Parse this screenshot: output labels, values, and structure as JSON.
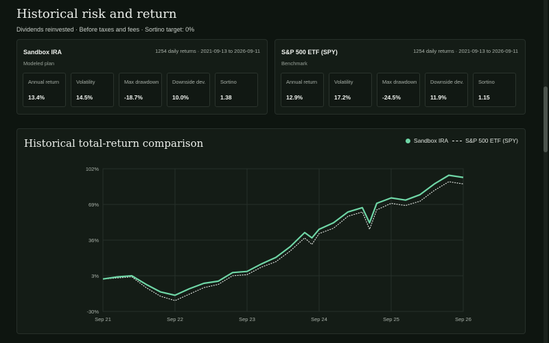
{
  "page": {
    "title": "Historical risk and return",
    "subtitle": "Dividends reinvested · Before taxes and fees · Sortino target: 0%"
  },
  "cards": [
    {
      "name": "Sandbox IRA",
      "role": "Modeled plan",
      "period": "1254 daily returns · 2021-09-13 to 2026-09-11",
      "metrics": [
        {
          "label": "Annual return",
          "value": "13.4%"
        },
        {
          "label": "Volatility",
          "value": "14.5%"
        },
        {
          "label": "Max drawdown",
          "value": "-18.7%"
        },
        {
          "label": "Downside dev.",
          "value": "10.0%"
        },
        {
          "label": "Sortino",
          "value": "1.38"
        }
      ]
    },
    {
      "name": "S&P 500 ETF (SPY)",
      "role": "Benchmark",
      "period": "1254 daily returns · 2021-09-13 to 2026-09-11",
      "metrics": [
        {
          "label": "Annual return",
          "value": "12.9%"
        },
        {
          "label": "Volatility",
          "value": "17.2%"
        },
        {
          "label": "Max drawdown",
          "value": "-24.5%"
        },
        {
          "label": "Downside dev.",
          "value": "11.9%"
        },
        {
          "label": "Sortino",
          "value": "1.15"
        }
      ]
    }
  ],
  "chart": {
    "title": "Historical total-return comparison",
    "legend": [
      "Sandbox IRA",
      "S&P 500 ETF (SPY)"
    ]
  },
  "colors": {
    "sandbox": "#6fd6a6",
    "spy": "#eaeeea",
    "grid": "#26302a"
  },
  "chart_data": {
    "type": "line",
    "title": "Historical total-return comparison",
    "xlabel": "",
    "ylabel": "",
    "ylim": [
      -30,
      102
    ],
    "y_ticks": [
      "102%",
      "69%",
      "36%",
      "3%",
      "-30%"
    ],
    "y_tick_values": [
      102,
      69,
      36,
      3,
      -30
    ],
    "x_ticks": [
      "Sep 21",
      "Sep 22",
      "Sep 23",
      "Sep 24",
      "Sep 25",
      "Sep 26"
    ],
    "x_tick_values": [
      2021.7,
      2022.7,
      2023.7,
      2024.7,
      2025.7,
      2026.7
    ],
    "legend_position": "top-right",
    "grid": true,
    "series": [
      {
        "name": "Sandbox IRA",
        "style": "solid",
        "x": [
          2021.7,
          2021.9,
          2022.1,
          2022.3,
          2022.5,
          2022.7,
          2022.9,
          2023.1,
          2023.3,
          2023.5,
          2023.7,
          2023.9,
          2024.1,
          2024.3,
          2024.5,
          2024.6,
          2024.7,
          2024.9,
          2025.1,
          2025.3,
          2025.4,
          2025.5,
          2025.7,
          2025.9,
          2026.1,
          2026.3,
          2026.5,
          2026.7
        ],
        "values": [
          0,
          2,
          3,
          -5,
          -12,
          -15,
          -9,
          -4,
          -2,
          6,
          7,
          14,
          20,
          30,
          43,
          38,
          46,
          52,
          62,
          66,
          52,
          70,
          75,
          73,
          78,
          88,
          96,
          94
        ]
      },
      {
        "name": "S&P 500 ETF (SPY)",
        "style": "dashed",
        "x": [
          2021.7,
          2021.9,
          2022.1,
          2022.3,
          2022.5,
          2022.7,
          2022.9,
          2023.1,
          2023.3,
          2023.5,
          2023.7,
          2023.9,
          2024.1,
          2024.3,
          2024.5,
          2024.6,
          2024.7,
          2024.9,
          2025.1,
          2025.3,
          2025.4,
          2025.5,
          2025.7,
          2025.9,
          2026.1,
          2026.3,
          2026.5,
          2026.7
        ],
        "values": [
          0,
          1,
          2,
          -8,
          -16,
          -20,
          -14,
          -8,
          -5,
          3,
          4,
          11,
          16,
          26,
          38,
          32,
          42,
          47,
          58,
          62,
          46,
          64,
          70,
          68,
          72,
          82,
          90,
          88
        ]
      }
    ]
  }
}
